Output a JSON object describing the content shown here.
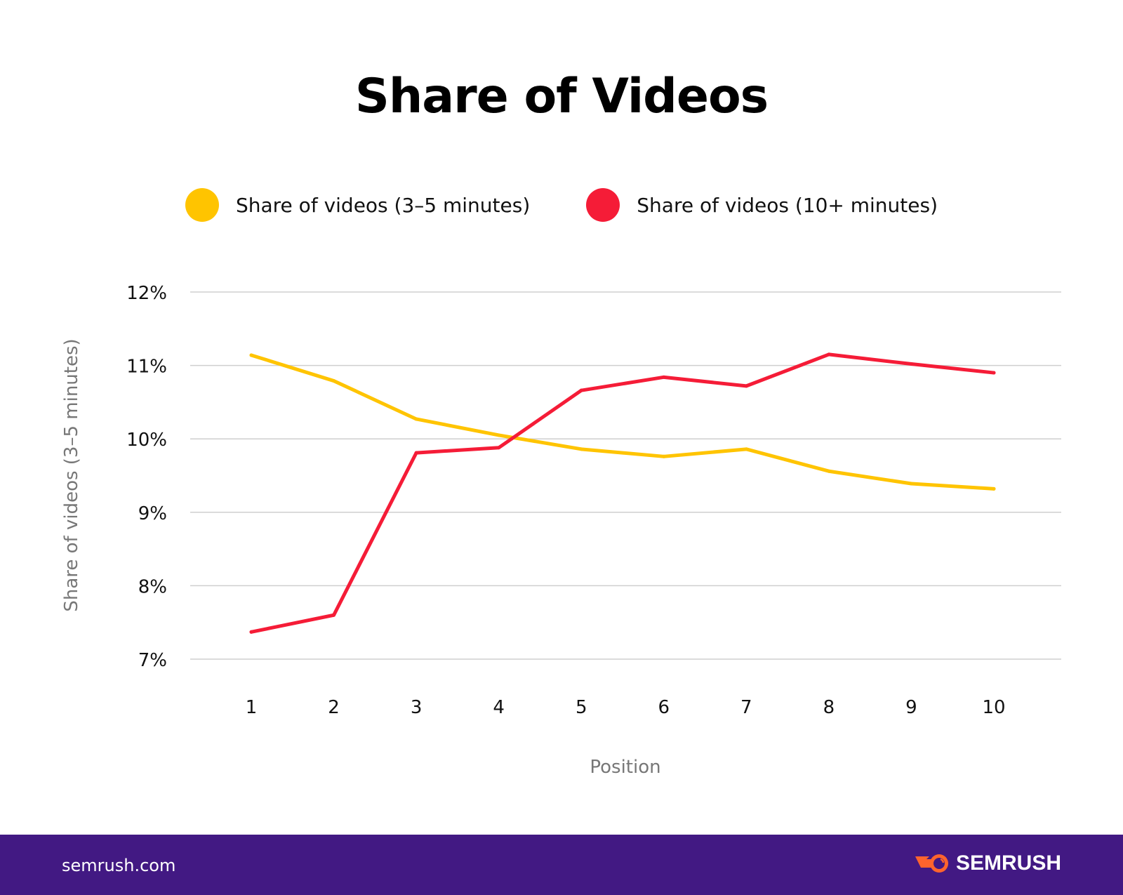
{
  "chart_data": {
    "type": "line",
    "title": "Share of Videos",
    "xlabel": "Position",
    "ylabel": "Share of videos (3–5 minutes)",
    "x": [
      1,
      2,
      3,
      4,
      5,
      6,
      7,
      8,
      9,
      10
    ],
    "ylim": [
      7,
      12
    ],
    "yticks": [
      7,
      8,
      9,
      10,
      11,
      12
    ],
    "ytick_labels": [
      "7%",
      "8%",
      "9%",
      "10%",
      "11%",
      "12%"
    ],
    "grid": true,
    "legend_position": "top-center",
    "series": [
      {
        "name": "Share of videos (3–5 minutes)",
        "color": "#FFC400",
        "values": [
          11.14,
          10.79,
          10.27,
          10.05,
          9.86,
          9.76,
          9.86,
          9.56,
          9.39,
          9.32
        ]
      },
      {
        "name": "Share of videos (10+ minutes)",
        "color": "#F51C37",
        "values": [
          7.37,
          7.6,
          9.81,
          9.88,
          10.66,
          10.84,
          10.72,
          11.15,
          11.02,
          10.9
        ]
      }
    ]
  },
  "footer": {
    "site": "semrush.com",
    "brand": "SEMRUSH",
    "background": "#421983",
    "logo_color": "#FF642D"
  }
}
